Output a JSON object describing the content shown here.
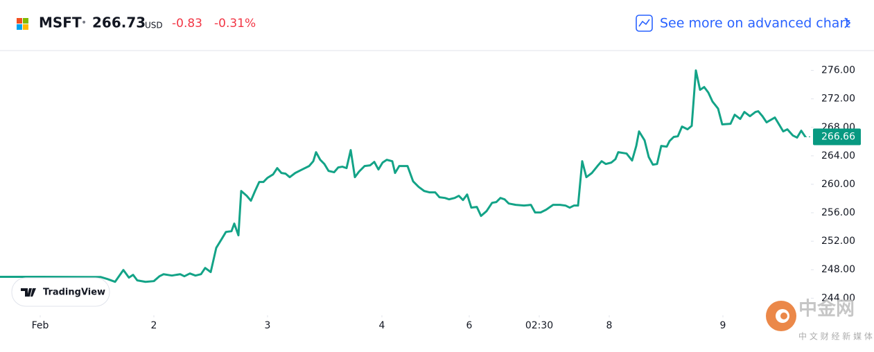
{
  "header": {
    "symbol": "MSFT",
    "separator": "•",
    "price": "266.73",
    "currency": "USD",
    "change": "-0.83",
    "change_percent": "-0.31%",
    "link": "See more on advanced chart"
  },
  "badge": "TradingView",
  "watermark": {
    "brand": "中金网",
    "tagline": "中 文 财 经 新 媒 体"
  },
  "chart_data": {
    "type": "line",
    "x": [
      0,
      60,
      130,
      145,
      155,
      166,
      178,
      186,
      192,
      198,
      210,
      222,
      230,
      236,
      248,
      260,
      266,
      274,
      282,
      290,
      296,
      304,
      312,
      320,
      326,
      334,
      338,
      344,
      348,
      356,
      362,
      368,
      374,
      380,
      386,
      394,
      400,
      406,
      412,
      418,
      426,
      436,
      446,
      452,
      456,
      462,
      468,
      474,
      482,
      488,
      494,
      500,
      506,
      512,
      518,
      526,
      534,
      540,
      546,
      552,
      558,
      566,
      570,
      576,
      588,
      596,
      604,
      612,
      620,
      628,
      634,
      642,
      648,
      656,
      662,
      668,
      674,
      680,
      688,
      694,
      702,
      710,
      716,
      722,
      728,
      734,
      744,
      756,
      766,
      772,
      780,
      788,
      798,
      808,
      816,
      822,
      828,
      834,
      840,
      846,
      854,
      862,
      868,
      874,
      882,
      888,
      892,
      904,
      912,
      918,
      922,
      930,
      936,
      942,
      948,
      954,
      962,
      966,
      972,
      978,
      984,
      992,
      998,
      1004,
      1010,
      1016,
      1022,
      1028,
      1036,
      1042,
      1054,
      1060,
      1068,
      1074,
      1082,
      1090,
      1094,
      1100,
      1106,
      1118,
      1124,
      1130,
      1136,
      1144,
      1150,
      1156,
      1162
    ],
    "series": [
      {
        "name": "MSFT",
        "color": "#13a387",
        "values": [
          247.0,
          247.0,
          246.98,
          246.98,
          246.69,
          246.3,
          247.96,
          246.89,
          247.28,
          246.5,
          246.3,
          246.4,
          247.08,
          247.37,
          247.18,
          247.37,
          247.08,
          247.47,
          247.18,
          247.37,
          248.25,
          247.67,
          251.07,
          252.34,
          253.31,
          253.41,
          254.48,
          252.83,
          259.06,
          258.38,
          257.69,
          259.06,
          260.32,
          260.32,
          260.91,
          261.39,
          262.27,
          261.59,
          261.49,
          261.0,
          261.59,
          262.08,
          262.56,
          263.24,
          264.51,
          263.44,
          262.85,
          261.88,
          261.69,
          262.37,
          262.47,
          262.27,
          264.8,
          261.0,
          261.78,
          262.56,
          262.66,
          263.15,
          262.08,
          263.05,
          263.44,
          263.24,
          261.59,
          262.56,
          262.56,
          260.42,
          259.64,
          259.06,
          258.86,
          258.86,
          258.18,
          258.08,
          257.89,
          258.08,
          258.38,
          257.79,
          258.57,
          256.72,
          256.82,
          255.55,
          256.23,
          257.4,
          257.5,
          258.08,
          257.89,
          257.3,
          257.11,
          257.01,
          257.11,
          256.04,
          256.04,
          256.43,
          257.11,
          257.11,
          257.01,
          256.72,
          257.01,
          257.01,
          263.24,
          261.0,
          261.59,
          262.56,
          263.24,
          262.85,
          263.05,
          263.54,
          264.51,
          264.32,
          263.34,
          265.39,
          267.43,
          266.17,
          263.83,
          262.76,
          262.85,
          265.39,
          265.29,
          266.07,
          266.65,
          266.75,
          268.11,
          267.72,
          268.21,
          276.0,
          273.27,
          273.66,
          272.88,
          271.62,
          270.64,
          268.41,
          268.5,
          269.77,
          269.18,
          270.16,
          269.57,
          270.16,
          270.26,
          269.57,
          268.7,
          269.38,
          268.41,
          267.43,
          267.72,
          266.85,
          266.56,
          267.53,
          266.66
        ]
      }
    ],
    "last_value": 266.66,
    "xlim": [
      0,
      1170
    ],
    "xticks": [
      {
        "value": 58,
        "label": "Feb"
      },
      {
        "value": 222,
        "label": "2"
      },
      {
        "value": 386,
        "label": "3"
      },
      {
        "value": 551,
        "label": "4"
      },
      {
        "value": 677,
        "label": "6"
      },
      {
        "value": 778,
        "label": "02:30"
      },
      {
        "value": 879,
        "label": "8"
      },
      {
        "value": 1043,
        "label": "9"
      }
    ],
    "ylim": [
      241.6,
      278.1
    ],
    "yticks": [
      {
        "value": 244,
        "label": "244.00"
      },
      {
        "value": 248,
        "label": "248.00"
      },
      {
        "value": 252,
        "label": "252.00"
      },
      {
        "value": 256,
        "label": "256.00"
      },
      {
        "value": 260,
        "label": "260.00"
      },
      {
        "value": 264,
        "label": "264.00"
      },
      {
        "value": 268,
        "label": "268.00"
      },
      {
        "value": 272,
        "label": "272.00"
      },
      {
        "value": 276,
        "label": "276.00"
      }
    ]
  }
}
